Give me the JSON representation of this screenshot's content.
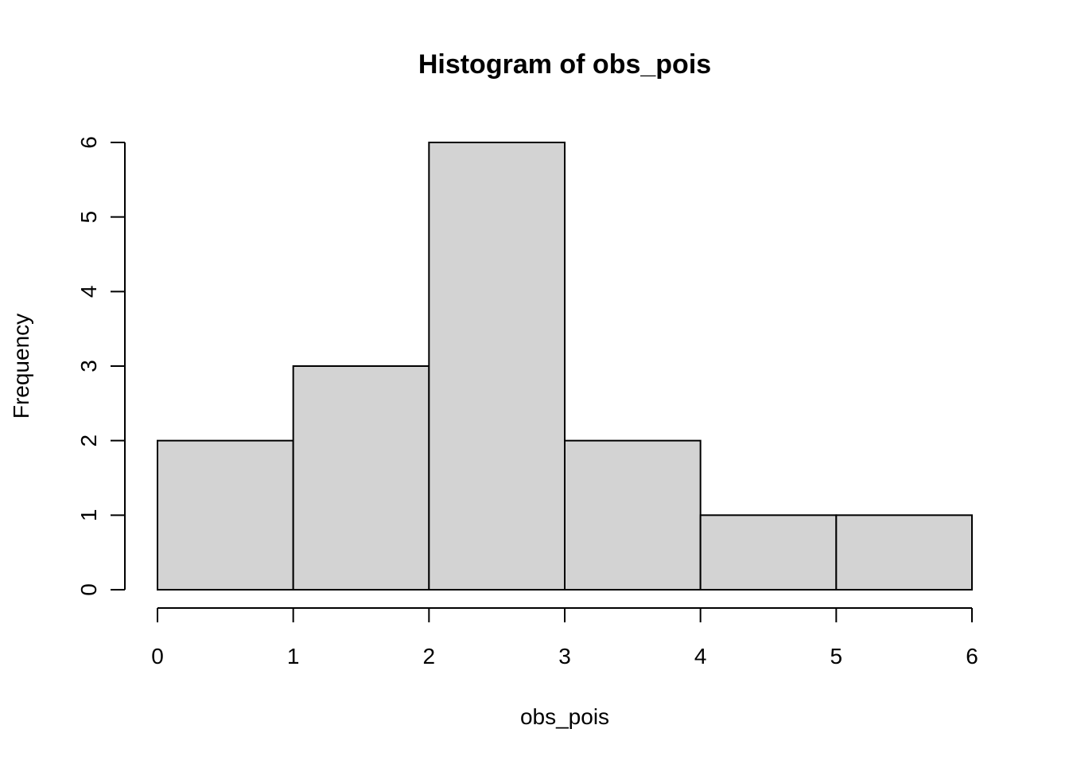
{
  "chart_data": {
    "type": "bar",
    "title": "Histogram of obs_pois",
    "xlabel": "obs_pois",
    "ylabel": "Frequency",
    "bins": [
      {
        "start": 0,
        "end": 1,
        "count": 2
      },
      {
        "start": 1,
        "end": 2,
        "count": 3
      },
      {
        "start": 2,
        "end": 3,
        "count": 6
      },
      {
        "start": 3,
        "end": 4,
        "count": 2
      },
      {
        "start": 4,
        "end": 5,
        "count": 1
      },
      {
        "start": 5,
        "end": 6,
        "count": 1
      }
    ],
    "xlim": [
      0,
      6
    ],
    "ylim": [
      0,
      6
    ],
    "x_ticks": [
      "0",
      "1",
      "2",
      "3",
      "4",
      "5",
      "6"
    ],
    "y_ticks": [
      "0",
      "1",
      "2",
      "3",
      "4",
      "5",
      "6"
    ],
    "grid": false,
    "bar_color": "#d3d3d3",
    "edge_color": "#000000"
  }
}
